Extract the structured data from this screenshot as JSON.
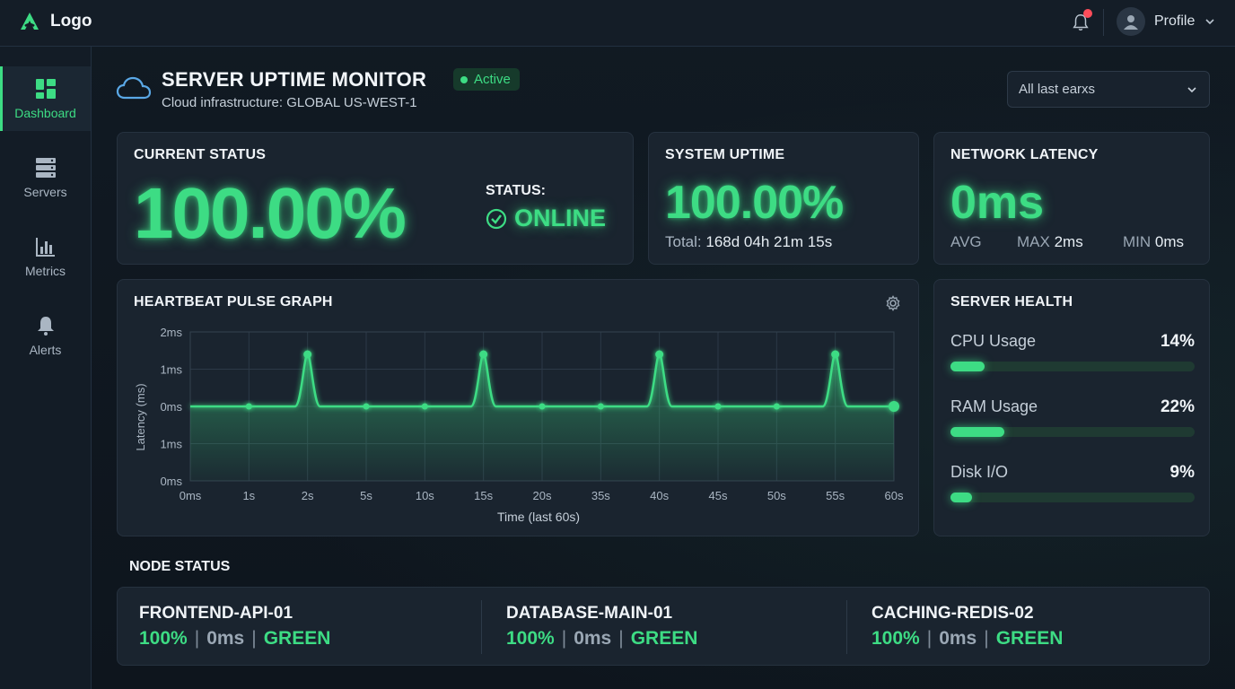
{
  "header": {
    "logo_label": "Logo",
    "profile_label": "Profile"
  },
  "sidebar": {
    "items": [
      {
        "label": "Dashboard",
        "icon": "dashboard-icon",
        "active": true
      },
      {
        "label": "Servers",
        "icon": "servers-icon",
        "active": false
      },
      {
        "label": "Metrics",
        "icon": "metrics-icon",
        "active": false
      },
      {
        "label": "Alerts",
        "icon": "bell-icon",
        "active": false
      }
    ]
  },
  "page": {
    "title": "SERVER UPTIME MONITOR",
    "badge": "Active",
    "subtitle": "Cloud infrastructure: GLOBAL US-WEST-1",
    "filter_value": "All last earxs"
  },
  "current_status": {
    "title": "CURRENT STATUS",
    "percent": "100.00%",
    "status_label": "STATUS:",
    "status_value": "ONLINE"
  },
  "system_uptime": {
    "title": "SYSTEM UPTIME",
    "percent": "100.00%",
    "total_label": "Total:",
    "total_value": "168d 04h 21m 15s"
  },
  "network_latency": {
    "title": "NETWORK LATENCY",
    "value": "0ms",
    "avg_label": "AVG",
    "max_label": "MAX",
    "max_value": "2ms",
    "min_label": "MIN",
    "min_value": "0ms"
  },
  "heartbeat": {
    "title": "HEARTBEAT PULSE GRAPH"
  },
  "chart_data": {
    "type": "line",
    "ylabel": "Latency (ms)",
    "xlabel": "Time (last 60s)",
    "x_ticks": [
      "0ms",
      "1s",
      "2s",
      "5s",
      "10s",
      "15s",
      "20s",
      "35s",
      "40s",
      "45s",
      "50s",
      "55s",
      "60s"
    ],
    "y_ticks": [
      "2ms",
      "1ms",
      "0ms",
      "1ms",
      "0ms"
    ],
    "baseline_points": [
      1,
      3,
      4,
      6,
      7,
      9,
      10,
      12
    ],
    "spikes": [
      2,
      5,
      8,
      11
    ],
    "baseline_value": 0,
    "spike_value": 1.4,
    "grid": true,
    "color": "#3ddc84"
  },
  "server_health": {
    "title": "SERVER HEALTH",
    "metrics": [
      {
        "label": "CPU Usage",
        "value": "14%",
        "fraction": 0.14
      },
      {
        "label": "RAM Usage",
        "value": "22%",
        "fraction": 0.22
      },
      {
        "label": "Disk I/O",
        "value": "9%",
        "fraction": 0.09
      }
    ]
  },
  "node_status": {
    "title": "NODE STATUS",
    "nodes": [
      {
        "name": "FRONTEND-API-01",
        "uptime": "100%",
        "latency": "0ms",
        "state": "GREEN"
      },
      {
        "name": "DATABASE-MAIN-01",
        "uptime": "100%",
        "latency": "0ms",
        "state": "GREEN"
      },
      {
        "name": "CACHING-REDIS-02",
        "uptime": "100%",
        "latency": "0ms",
        "state": "GREEN"
      }
    ]
  },
  "colors": {
    "accent": "#3ddc84",
    "background": "#0f1720",
    "card": "#1a242f",
    "notification": "#ff4d5a"
  }
}
